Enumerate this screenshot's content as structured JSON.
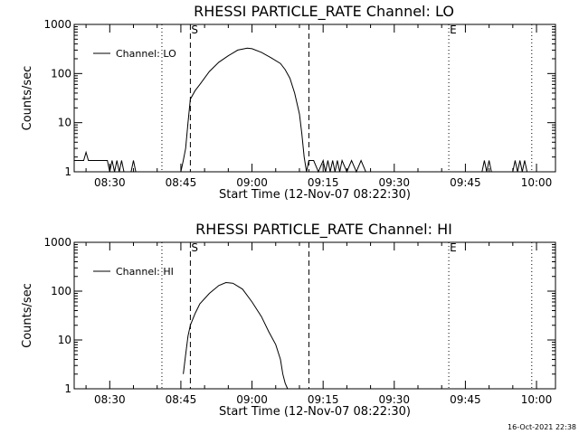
{
  "footer": {
    "timestamp": "16-Oct-2021 22:38"
  },
  "chart_data": [
    {
      "type": "line",
      "title": "RHESSI PARTICLE_RATE Channel: LO",
      "xlabel": "Start Time (12-Nov-07 08:22:30)",
      "ylabel": "Counts/sec",
      "yscale": "log",
      "ylim": [
        1,
        1000
      ],
      "xlim": [
        "08:22:30",
        "10:04:00"
      ],
      "xticks": [
        "08:30",
        "08:45",
        "09:00",
        "09:15",
        "09:30",
        "09:45",
        "10:00"
      ],
      "yticks": [
        "1",
        "10",
        "100",
        "1000"
      ],
      "legend": {
        "label": "Channel: LO",
        "position": "top-left"
      },
      "markers": [
        {
          "label": "S",
          "time": "08:47:00",
          "style": "dashed"
        },
        {
          "label": "",
          "time": "09:12:00",
          "style": "dashed"
        },
        {
          "label": "",
          "time": "08:41:00",
          "style": "dotted"
        },
        {
          "label": "E",
          "time": "09:41:30",
          "style": "dotted"
        },
        {
          "label": "",
          "time": "09:59:00",
          "style": "dotted"
        }
      ],
      "series": [
        {
          "name": "Channel: LO",
          "x": [
            "08:22:30",
            "08:24:30",
            "08:25:00",
            "08:25:30",
            "08:26:00",
            "08:29:30",
            "08:30:00",
            "08:30:30",
            "08:31:00",
            "08:31:30",
            "08:32:00",
            "08:32:30",
            "08:33:00",
            "08:34:30",
            "08:35:00",
            "08:35:30",
            "08:45:00",
            "08:45:30",
            "08:46:00",
            "08:46:30",
            "08:47:00",
            "08:48:00",
            "08:49:00",
            "08:51:00",
            "08:53:00",
            "08:55:00",
            "08:57:00",
            "08:59:00",
            "09:00:00",
            "09:02:00",
            "09:04:00",
            "09:06:00",
            "09:07:00",
            "09:08:00",
            "09:09:00",
            "09:10:00",
            "09:10:30",
            "09:11:00",
            "09:11:30",
            "09:12:00",
            "09:13:00",
            "09:14:00",
            "09:15:00",
            "09:15:30",
            "09:16:00",
            "09:16:30",
            "09:17:00",
            "09:17:30",
            "09:18:00",
            "09:18:30",
            "09:19:00",
            "09:20:00",
            "09:21:00",
            "09:22:00",
            "09:23:00",
            "09:24:00",
            "09:48:30",
            "09:49:00",
            "09:49:30",
            "09:50:00",
            "09:50:30",
            "09:55:00",
            "09:55:30",
            "09:56:00",
            "09:56:30",
            "09:57:00",
            "09:57:30",
            "09:58:00"
          ],
          "y": [
            1.7,
            1.7,
            2.5,
            1.7,
            1.7,
            1.7,
            1,
            1.7,
            1,
            1.7,
            1,
            1.7,
            1,
            1,
            1.7,
            1,
            1,
            1.7,
            3,
            10,
            30,
            45,
            60,
            110,
            170,
            230,
            300,
            330,
            320,
            270,
            210,
            160,
            120,
            80,
            40,
            15,
            6,
            2,
            1,
            1.7,
            1.7,
            1,
            1.7,
            1,
            1.7,
            1,
            1.7,
            1,
            1.7,
            1,
            1.7,
            1,
            1.7,
            1,
            1.7,
            1,
            1,
            1.7,
            1,
            1.7,
            1,
            1,
            1.7,
            1,
            1.7,
            1,
            1.7,
            1
          ]
        }
      ]
    },
    {
      "type": "line",
      "title": "RHESSI PARTICLE_RATE Channel: HI",
      "xlabel": "Start Time (12-Nov-07 08:22:30)",
      "ylabel": "Counts/sec",
      "yscale": "log",
      "ylim": [
        1,
        1000
      ],
      "xlim": [
        "08:22:30",
        "10:04:00"
      ],
      "xticks": [
        "08:30",
        "08:45",
        "09:00",
        "09:15",
        "09:30",
        "09:45",
        "10:00"
      ],
      "yticks": [
        "1",
        "10",
        "100",
        "1000"
      ],
      "legend": {
        "label": "Channel: HI",
        "position": "top-left"
      },
      "markers": [
        {
          "label": "S",
          "time": "08:47:00",
          "style": "dashed"
        },
        {
          "label": "",
          "time": "09:12:00",
          "style": "dashed"
        },
        {
          "label": "",
          "time": "08:41:00",
          "style": "dotted"
        },
        {
          "label": "E",
          "time": "09:41:30",
          "style": "dotted"
        },
        {
          "label": "",
          "time": "09:59:00",
          "style": "dotted"
        }
      ],
      "series": [
        {
          "name": "Channel: HI",
          "x": [
            "08:45:30",
            "08:46:00",
            "08:46:30",
            "08:47:00",
            "08:48:00",
            "08:49:00",
            "08:51:00",
            "08:53:00",
            "08:54:30",
            "08:56:00",
            "08:58:00",
            "09:00:00",
            "09:02:00",
            "09:03:30",
            "09:05:00",
            "09:06:00",
            "09:06:30",
            "09:07:00",
            "09:07:30"
          ],
          "y": [
            2,
            5,
            12,
            20,
            35,
            55,
            90,
            130,
            150,
            145,
            110,
            60,
            30,
            15,
            8,
            4,
            2,
            1.3,
            1
          ]
        }
      ]
    }
  ]
}
